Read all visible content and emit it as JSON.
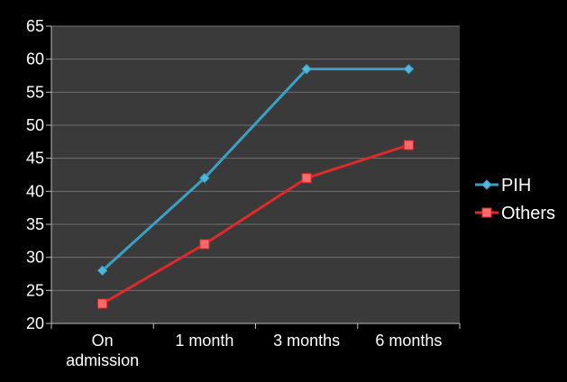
{
  "chart_data": {
    "type": "line",
    "categories": [
      [
        "On",
        "admission"
      ],
      [
        "1 month"
      ],
      [
        "3 months"
      ],
      [
        "6 months"
      ]
    ],
    "series": [
      {
        "name": "PIH",
        "values": [
          28,
          42,
          58.5,
          58.5
        ],
        "color": "#3aa0c8",
        "marker": "diamond"
      },
      {
        "name": "Others",
        "values": [
          23,
          32,
          42,
          47
        ],
        "color": "#e02a2a",
        "marker": "square"
      }
    ],
    "title": "",
    "xlabel": "",
    "ylabel": "",
    "ylim": [
      20,
      65
    ],
    "yticks": [
      20,
      25,
      30,
      35,
      40,
      45,
      50,
      55,
      60,
      65
    ],
    "grid": true,
    "legend_position": "right",
    "background_color": "#000000",
    "plot_area_color": "#3a3a3a",
    "grid_color": "#6e6e6e"
  }
}
